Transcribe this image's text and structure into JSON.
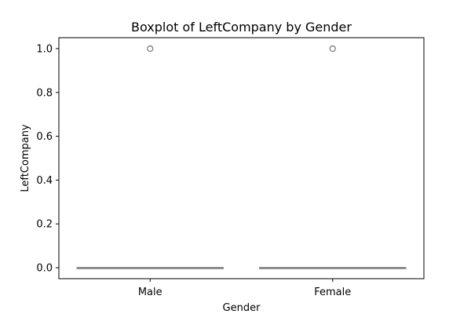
{
  "chart_data": {
    "type": "box",
    "title": "Boxplot of LeftCompany by Gender",
    "xlabel": "Gender",
    "ylabel": "LeftCompany",
    "categories": [
      "Male",
      "Female"
    ],
    "ylim": [
      -0.05,
      1.05
    ],
    "yticks": [
      0.0,
      0.2,
      0.4,
      0.6,
      0.8,
      1.0
    ],
    "ytick_labels": [
      "0.0",
      "0.2",
      "0.4",
      "0.6",
      "0.8",
      "1.0"
    ],
    "boxes": [
      {
        "category": "Male",
        "whisker_low": 0,
        "q1": 0,
        "median": 0,
        "q3": 0,
        "whisker_high": 0,
        "outliers": [
          1.0
        ]
      },
      {
        "category": "Female",
        "whisker_low": 0,
        "q1": 0,
        "median": 0,
        "q3": 0,
        "whisker_high": 0,
        "outliers": [
          1.0
        ]
      }
    ],
    "grid": false,
    "legend": "none",
    "colors": {
      "box": "#808080",
      "axes": "#000000",
      "outlier": "#808080"
    }
  }
}
